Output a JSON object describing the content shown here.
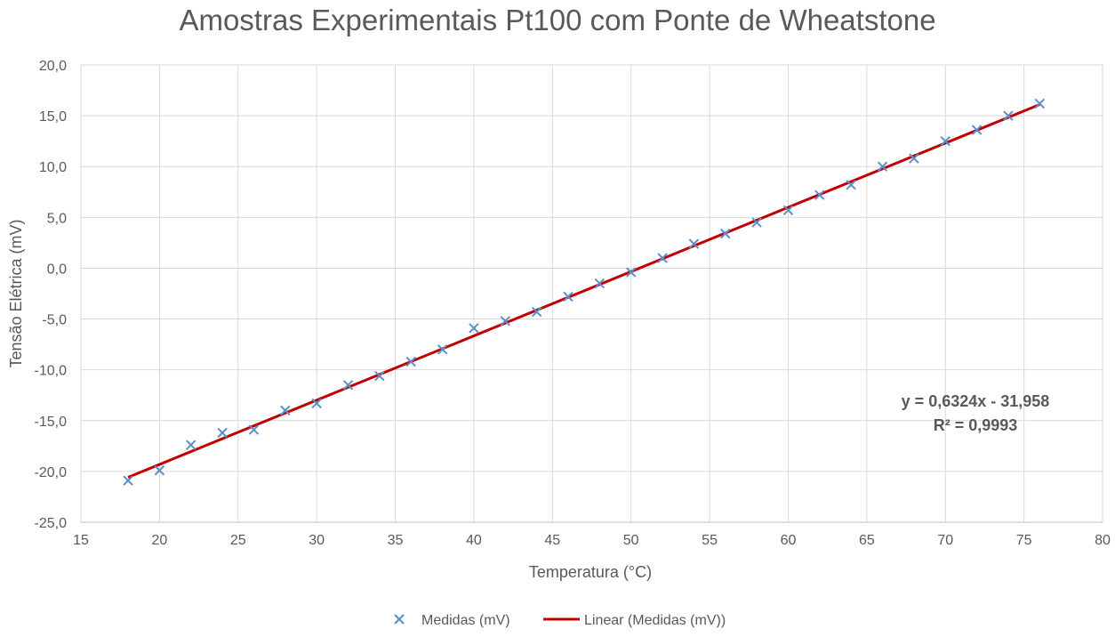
{
  "chart_data": {
    "type": "scatter",
    "title": "Amostras Experimentais Pt100 com Ponte de Wheatstone",
    "xlabel": "Temperatura (°C)",
    "ylabel": "Tensão Elétrica (mV)",
    "xlim": [
      15,
      80
    ],
    "ylim": [
      -25,
      20
    ],
    "x_ticks": [
      15,
      20,
      25,
      30,
      35,
      40,
      45,
      50,
      55,
      60,
      65,
      70,
      75,
      80
    ],
    "y_ticks": [
      -25,
      -20,
      -15,
      -10,
      -5,
      0,
      5,
      10,
      15,
      20
    ],
    "x_tick_labels": [
      "15",
      "20",
      "25",
      "30",
      "35",
      "40",
      "45",
      "50",
      "55",
      "60",
      "65",
      "70",
      "75",
      "80"
    ],
    "y_tick_labels": [
      "-25,0",
      "-20,0",
      "-15,0",
      "-10,0",
      "-5,0",
      "0,0",
      "5,0",
      "10,0",
      "15,0",
      "20,0"
    ],
    "grid": true,
    "legend_position": "bottom",
    "series": [
      {
        "name": "Medidas (mV)",
        "marker": "x",
        "color": "#5b8fc7",
        "points": [
          {
            "x": 18,
            "y": -20.9
          },
          {
            "x": 20,
            "y": -19.9
          },
          {
            "x": 22,
            "y": -17.4
          },
          {
            "x": 24,
            "y": -16.2
          },
          {
            "x": 26,
            "y": -15.9
          },
          {
            "x": 28,
            "y": -14.0
          },
          {
            "x": 30,
            "y": -13.3
          },
          {
            "x": 32,
            "y": -11.5
          },
          {
            "x": 34,
            "y": -10.6
          },
          {
            "x": 36,
            "y": -9.2
          },
          {
            "x": 38,
            "y": -8.0
          },
          {
            "x": 40,
            "y": -5.9
          },
          {
            "x": 42,
            "y": -5.2
          },
          {
            "x": 44,
            "y": -4.3
          },
          {
            "x": 46,
            "y": -2.8
          },
          {
            "x": 48,
            "y": -1.5
          },
          {
            "x": 50,
            "y": -0.4
          },
          {
            "x": 52,
            "y": 1.0
          },
          {
            "x": 54,
            "y": 2.4
          },
          {
            "x": 56,
            "y": 3.4
          },
          {
            "x": 58,
            "y": 4.5
          },
          {
            "x": 60,
            "y": 5.7
          },
          {
            "x": 62,
            "y": 7.2
          },
          {
            "x": 64,
            "y": 8.2
          },
          {
            "x": 66,
            "y": 10.0
          },
          {
            "x": 68,
            "y": 10.8
          },
          {
            "x": 70,
            "y": 12.5
          },
          {
            "x": 72,
            "y": 13.6
          },
          {
            "x": 74,
            "y": 15.0
          },
          {
            "x": 76,
            "y": 16.2
          }
        ]
      },
      {
        "name": "Linear (Medidas (mV))",
        "type": "trendline",
        "color": "#c00000",
        "slope": 0.6324,
        "intercept": -31.958,
        "x_range": [
          18,
          76
        ]
      }
    ],
    "annotations": {
      "equation": "y = 0,6324x - 31,958",
      "r_squared": "R² = 0,9993"
    }
  }
}
